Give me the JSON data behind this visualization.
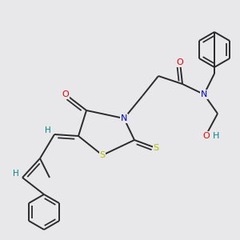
{
  "bg_color": "#e8e8ea",
  "bond_color": "#2a2a2a",
  "atom_colors": {
    "N": "#0000ee",
    "O": "#ee0000",
    "S": "#bbbb00",
    "H": "#008888",
    "C": "#2a2a2a"
  },
  "figsize": [
    3.0,
    3.0
  ],
  "dpi": 100
}
